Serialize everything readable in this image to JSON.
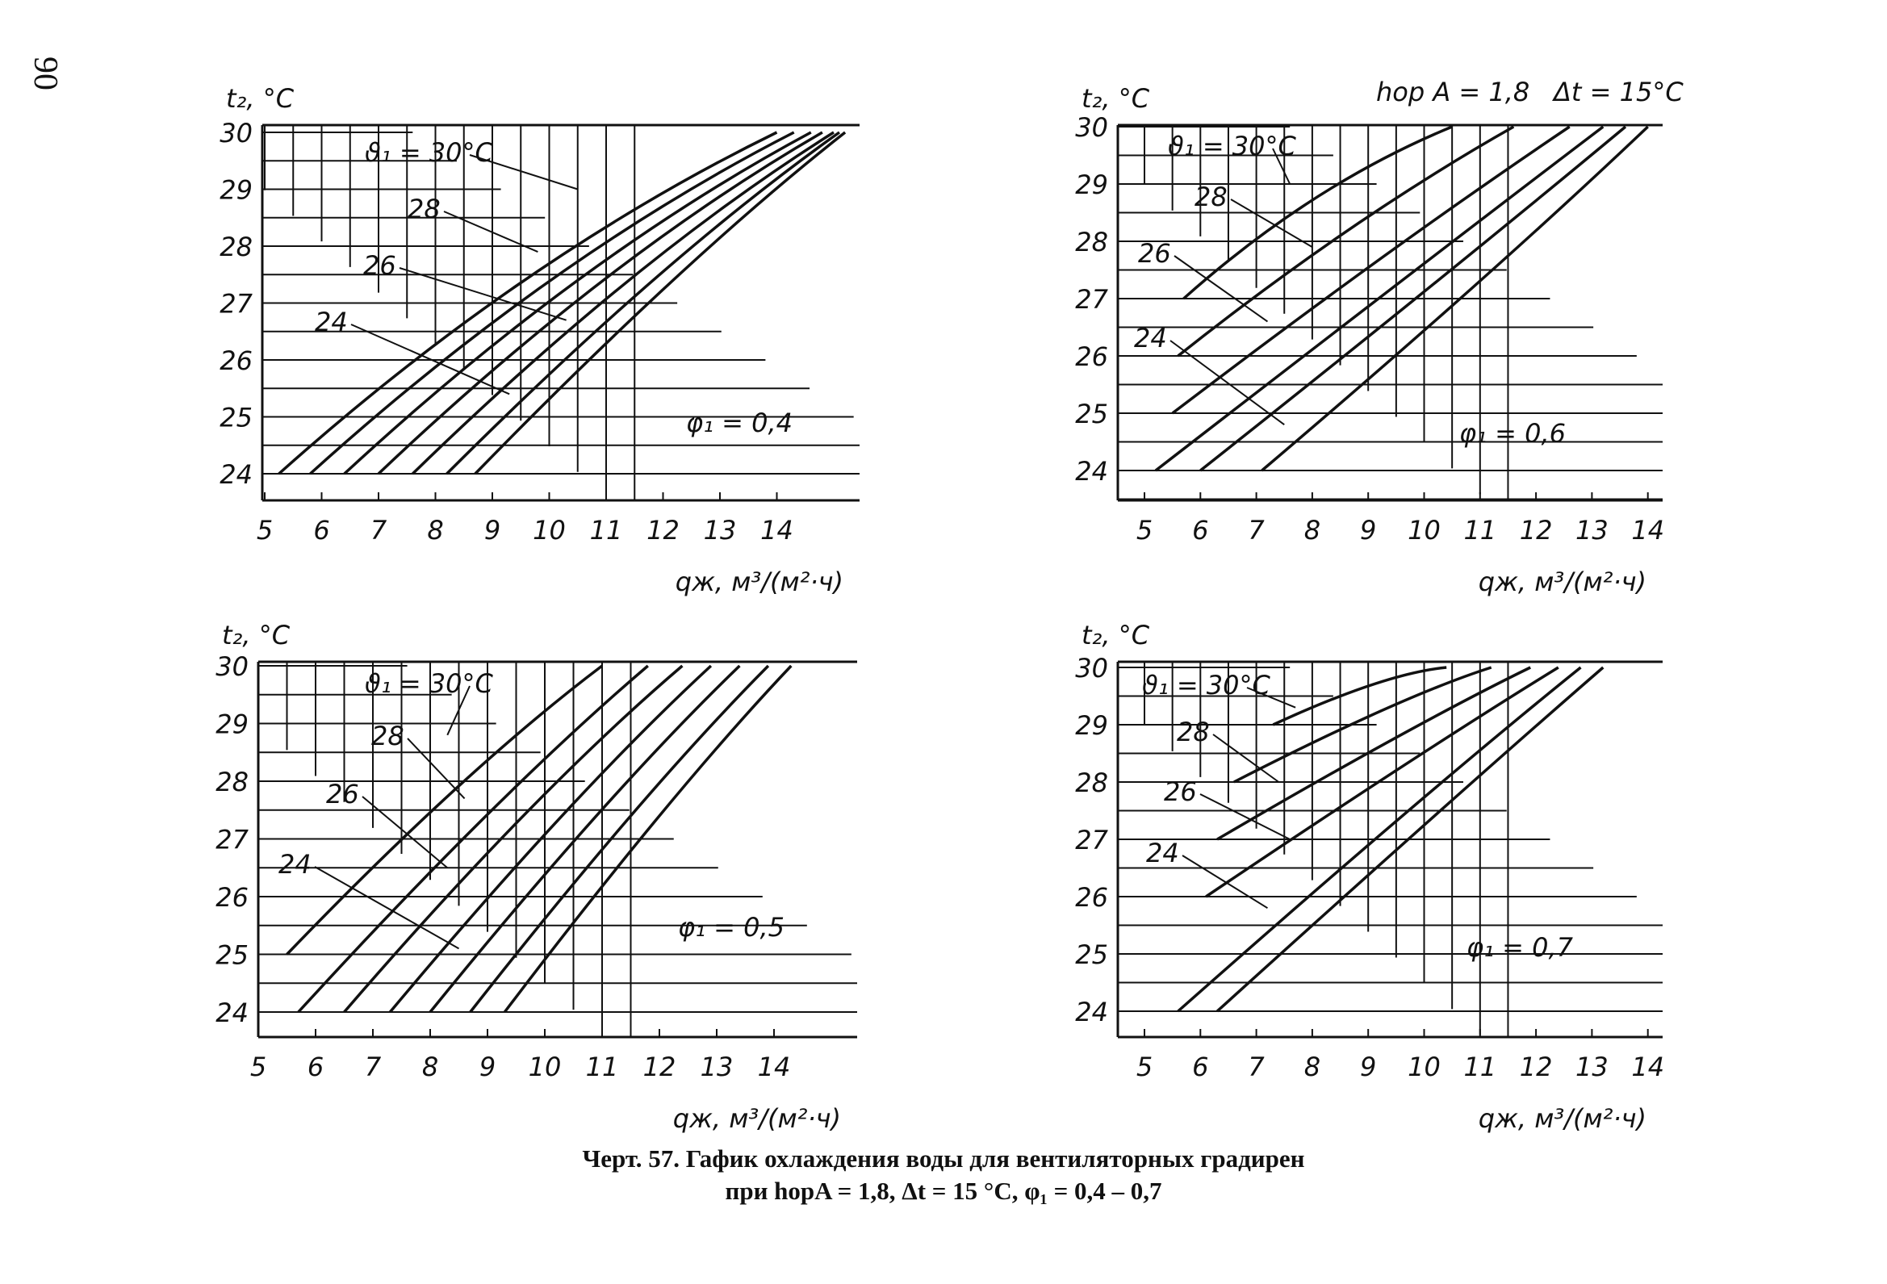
{
  "page_number": "90",
  "caption": {
    "line1": "Черт. 57. Гафик охлаждения воды для вентиляторных градирен",
    "line2": "при hорA = 1,8,    Δt = 15 °C, φ₁ = 0,4 – 0,7"
  },
  "colors": {
    "ink": "#111111",
    "paper": "#ffffff"
  },
  "chart_data": [
    {
      "type": "line",
      "panel": "top-left",
      "ylabel": "t₂, °C",
      "xlabel": "qж, м³/(м²·ч)",
      "annotation": "φ₁ = 0,4",
      "x_ticks": [
        "5",
        "6",
        "7",
        "8",
        "9",
        "10",
        "11",
        "12",
        "13",
        "14"
      ],
      "y_ticks": [
        "24",
        "25",
        "26",
        "27",
        "28",
        "29",
        "30"
      ],
      "xlim": [
        5,
        15.2
      ],
      "ylim": [
        23.5,
        30
      ],
      "grid": true,
      "curve_labels": [
        "ϑ₁ = 30°C",
        "28",
        "26",
        "24"
      ],
      "series": [
        {
          "name": "ϑ₁ = 30°C",
          "x": [
            5.25,
            9.5,
            14.0
          ],
          "y": [
            24,
            27.8,
            30
          ]
        },
        {
          "name": "",
          "x": [
            5.8,
            10.0,
            14.3
          ],
          "y": [
            24,
            27.8,
            30
          ]
        },
        {
          "name": "28",
          "x": [
            6.4,
            10.5,
            14.6
          ],
          "y": [
            24,
            27.8,
            30
          ]
        },
        {
          "name": "",
          "x": [
            7.0,
            11.0,
            14.8
          ],
          "y": [
            24,
            27.8,
            30
          ]
        },
        {
          "name": "26",
          "x": [
            7.6,
            11.5,
            15.0
          ],
          "y": [
            24,
            27.8,
            30
          ]
        },
        {
          "name": "",
          "x": [
            8.2,
            12.0,
            15.1
          ],
          "y": [
            24,
            27.8,
            30
          ]
        },
        {
          "name": "24",
          "x": [
            8.7,
            12.4,
            15.2
          ],
          "y": [
            24,
            27.8,
            30
          ]
        }
      ]
    },
    {
      "type": "line",
      "panel": "top-right",
      "ylabel": "t₂, °C",
      "xlabel": "qж, м³/(м²·ч)",
      "header_left": "hор A = 1,8",
      "header_right": "Δt = 15°C",
      "annotation": "φ₁ = 0,6",
      "x_ticks": [
        "5",
        "6",
        "7",
        "8",
        "9",
        "10",
        "11",
        "12",
        "13",
        "14"
      ],
      "y_ticks": [
        "24",
        "25",
        "26",
        "27",
        "28",
        "29",
        "30"
      ],
      "xlim": [
        4.5,
        14.2
      ],
      "ylim": [
        23.5,
        30
      ],
      "grid": true,
      "curve_labels": [
        "ϑ₁ = 30°C",
        "28",
        "26",
        "24"
      ],
      "series": [
        {
          "name": "ϑ₁ = 30°C",
          "x": [
            5.7,
            8.0,
            10.5
          ],
          "y": [
            27,
            29,
            30
          ]
        },
        {
          "name": "28",
          "x": [
            5.6,
            8.7,
            11.6
          ],
          "y": [
            26,
            28.4,
            30
          ]
        },
        {
          "name": "26",
          "x": [
            5.5,
            9.4,
            12.6
          ],
          "y": [
            25,
            27.9,
            30
          ]
        },
        {
          "name": "",
          "x": [
            5.2,
            9.7,
            13.2
          ],
          "y": [
            24,
            27.4,
            30
          ]
        },
        {
          "name": "24",
          "x": [
            6.0,
            10.4,
            13.6
          ],
          "y": [
            24,
            27.4,
            30
          ]
        },
        {
          "name": "",
          "x": [
            7.1,
            11.2,
            14.0
          ],
          "y": [
            24,
            27.4,
            30
          ]
        }
      ]
    },
    {
      "type": "line",
      "panel": "bottom-left",
      "ylabel": "t₂, °C",
      "xlabel": "qж, м³/(м²·ч)",
      "annotation": "φ₁ = 0,5",
      "x_ticks": [
        "5",
        "6",
        "7",
        "8",
        "9",
        "10",
        "11",
        "12",
        "13",
        "14"
      ],
      "y_ticks": [
        "24",
        "25",
        "26",
        "27",
        "28",
        "29",
        "30"
      ],
      "xlim": [
        5,
        15
      ],
      "ylim": [
        23.5,
        30
      ],
      "grid": true,
      "curve_labels": [
        "ϑ₁ = 30°C",
        "28",
        "26",
        "24"
      ],
      "series": [
        {
          "name": "ϑ₁ = 30°C",
          "x": [
            5.5,
            8.6,
            11.0
          ],
          "y": [
            25,
            28.2,
            30
          ]
        },
        {
          "name": "",
          "x": [
            5.7,
            9.2,
            11.8
          ],
          "y": [
            24,
            27.8,
            30
          ]
        },
        {
          "name": "28",
          "x": [
            6.5,
            9.8,
            12.4
          ],
          "y": [
            24,
            27.8,
            30
          ]
        },
        {
          "name": "",
          "x": [
            7.3,
            10.5,
            12.9
          ],
          "y": [
            24,
            27.8,
            30
          ]
        },
        {
          "name": "26",
          "x": [
            8.0,
            11.1,
            13.4
          ],
          "y": [
            24,
            27.8,
            30
          ]
        },
        {
          "name": "",
          "x": [
            8.7,
            11.7,
            13.9
          ],
          "y": [
            24,
            27.8,
            30
          ]
        },
        {
          "name": "24",
          "x": [
            9.3,
            12.2,
            14.3
          ],
          "y": [
            24,
            27.8,
            30
          ]
        }
      ]
    },
    {
      "type": "line",
      "panel": "bottom-right",
      "ylabel": "t₂, °C",
      "xlabel": "qж, м³/(м²·ч)",
      "annotation": "φ₁ = 0,7",
      "x_ticks": [
        "5",
        "6",
        "7",
        "8",
        "9",
        "10",
        "11",
        "12",
        "13",
        "14"
      ],
      "y_ticks": [
        "24",
        "25",
        "26",
        "27",
        "28",
        "29",
        "30"
      ],
      "xlim": [
        4.5,
        14.2
      ],
      "ylim": [
        23.5,
        30
      ],
      "grid": true,
      "curve_labels": [
        "ϑ₁ = 30°C",
        "28",
        "26",
        "24"
      ],
      "series": [
        {
          "name": "ϑ₁ = 30°C",
          "x": [
            7.3,
            9.3,
            10.4
          ],
          "y": [
            29,
            29.9,
            30
          ]
        },
        {
          "name": "28",
          "x": [
            6.6,
            9.6,
            11.2
          ],
          "y": [
            28,
            29.5,
            30
          ]
        },
        {
          "name": "",
          "x": [
            6.3,
            9.8,
            11.9
          ],
          "y": [
            27,
            29,
            30
          ]
        },
        {
          "name": "26",
          "x": [
            6.1,
            9.9,
            12.4
          ],
          "y": [
            26,
            28.5,
            30
          ]
        },
        {
          "name": "24",
          "x": [
            5.6,
            10.0,
            12.8
          ],
          "y": [
            24,
            27.8,
            30
          ]
        },
        {
          "name": "",
          "x": [
            6.3,
            10.6,
            13.2
          ],
          "y": [
            24,
            27.8,
            30
          ]
        }
      ]
    }
  ]
}
